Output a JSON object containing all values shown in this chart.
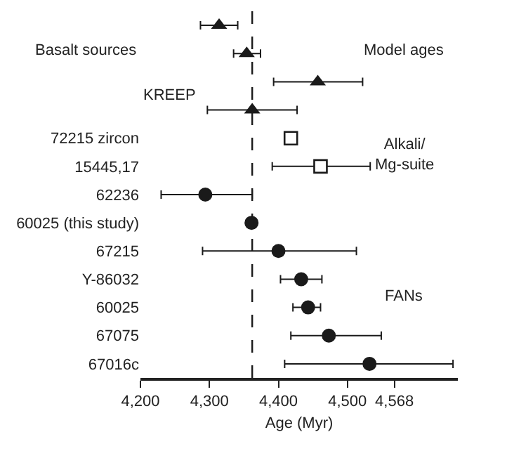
{
  "chart_data": {
    "type": "scatter",
    "orientation": "horizontal",
    "xlabel": "Age (Myr)",
    "categories": [
      null,
      null,
      null,
      null,
      "72215 zircon",
      "15445,17",
      "62236",
      "60025 (this study)",
      "67215",
      "Y-86032",
      "60025",
      "67075",
      "67016c"
    ],
    "series": [
      {
        "color": "#1a1a1a",
        "marker": "triangle",
        "values": [
          4314,
          4354,
          4457,
          4362,
          null,
          null,
          null,
          null,
          null,
          null,
          null,
          null,
          null
        ],
        "errors": [
          [
            4287,
            4341
          ],
          [
            4335,
            4374
          ],
          [
            4393,
            4522
          ],
          [
            4297,
            4427
          ],
          null,
          null,
          null,
          null,
          null,
          null,
          null,
          null,
          null
        ]
      },
      {
        "color": "#1a1a1a",
        "marker": "square",
        "values": [
          null,
          null,
          null,
          null,
          4418,
          4461,
          null,
          null,
          null,
          null,
          null,
          null,
          null
        ],
        "errors": [
          null,
          null,
          null,
          null,
          null,
          [
            4391,
            4533
          ],
          null,
          null,
          null,
          null,
          null,
          null,
          null
        ]
      },
      {
        "color": "#1a1a1a",
        "marker": "circle",
        "values": [
          null,
          null,
          null,
          null,
          null,
          null,
          4294,
          4361,
          4400,
          4433,
          4443,
          4473,
          4532
        ],
        "errors": [
          null,
          null,
          null,
          null,
          null,
          null,
          [
            4230,
            4362
          ],
          null,
          [
            4290,
            4513
          ],
          [
            4403,
            4463
          ],
          [
            4421,
            4461
          ],
          [
            4418,
            4549
          ],
          [
            4409,
            4653
          ]
        ]
      }
    ],
    "xlim": [
      4200,
      4660
    ],
    "xticks": [
      {
        "value": 4200,
        "label": "4,200"
      },
      {
        "value": 4300,
        "label": "4,300"
      },
      {
        "value": 4400,
        "label": "4,400"
      },
      {
        "value": 4500,
        "label": "4,500"
      },
      {
        "value": 4568,
        "label": "4,568"
      }
    ],
    "ref_lines": [
      {
        "axis": "x",
        "value": 4362,
        "line_style": "dashed",
        "color": "#1a1a1a"
      }
    ],
    "annotations": [
      "Basalt sources",
      "KREEP",
      "Model ages",
      "Alkali/\nMg-suite",
      "FANs"
    ]
  }
}
